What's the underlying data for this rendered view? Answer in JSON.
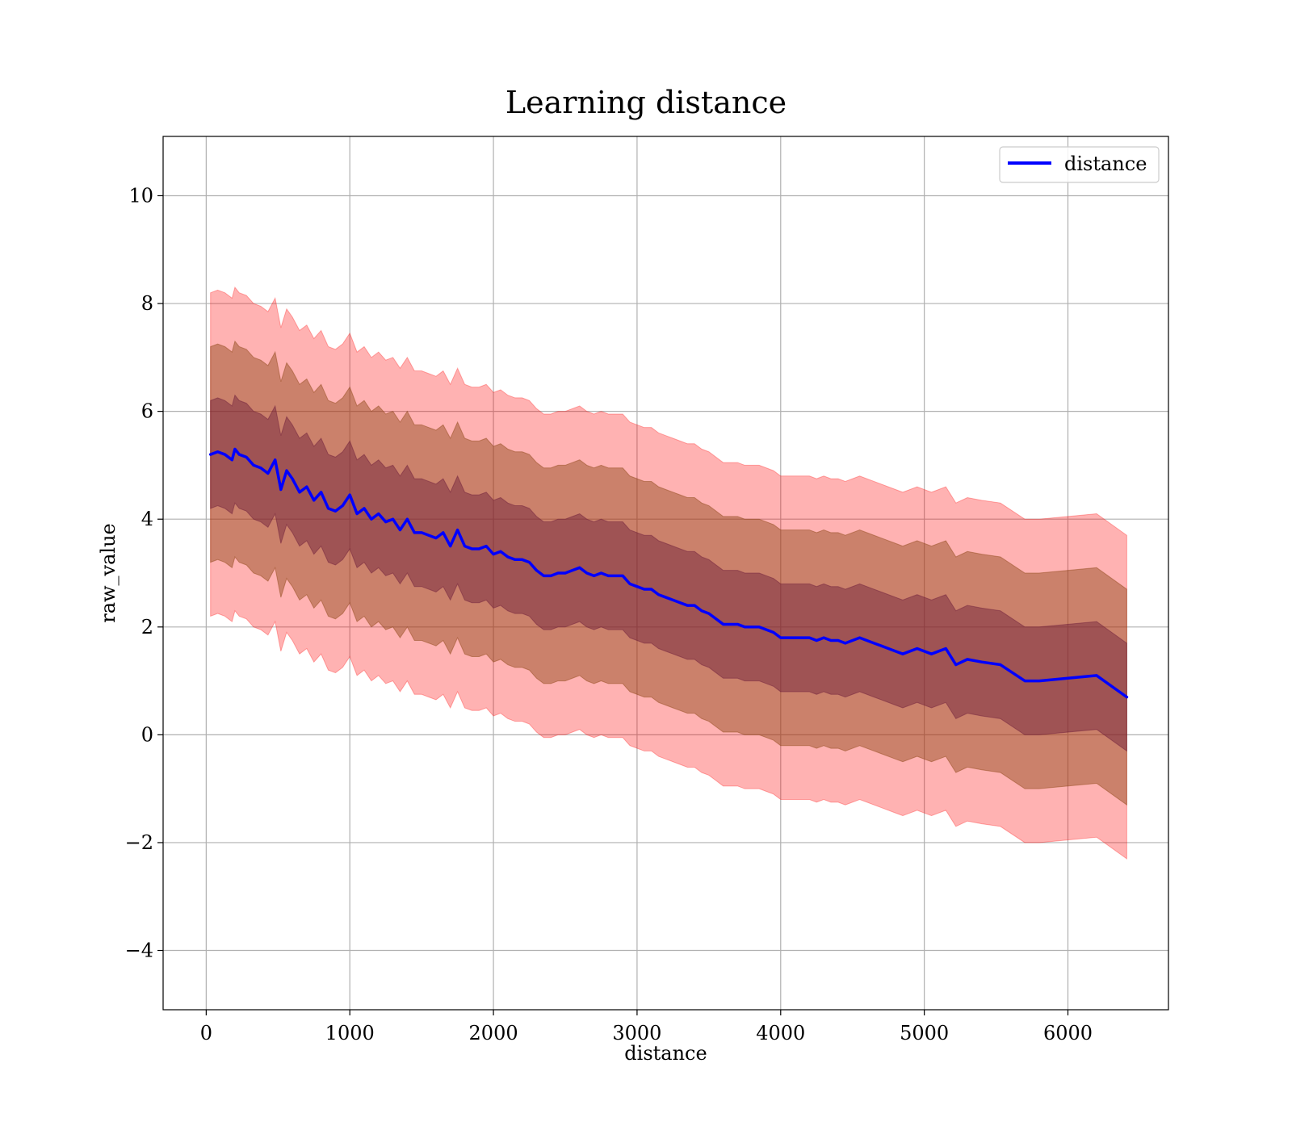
{
  "chart_data": {
    "type": "line",
    "title": "Learning distance",
    "xlabel": "distance",
    "ylabel": "raw_value",
    "xlim": [
      -300,
      6700
    ],
    "ylim": [
      -5.1,
      11.1
    ],
    "x_ticks": [
      0,
      1000,
      2000,
      3000,
      4000,
      5000,
      6000
    ],
    "y_ticks": [
      -4,
      -2,
      0,
      2,
      4,
      6,
      8,
      10
    ],
    "x_tick_labels": [
      "0",
      "1000",
      "2000",
      "3000",
      "4000",
      "5000",
      "6000"
    ],
    "y_tick_labels": [
      "−4",
      "−2",
      "0",
      "2",
      "4",
      "6",
      "8",
      "10"
    ],
    "grid": true,
    "legend_position": "top-right",
    "series": [
      {
        "name": "distance",
        "color": "#0000ff",
        "x": [
          30,
          80,
          130,
          180,
          200,
          230,
          280,
          330,
          380,
          430,
          480,
          520,
          560,
          600,
          650,
          700,
          750,
          800,
          850,
          900,
          950,
          1000,
          1050,
          1100,
          1150,
          1200,
          1250,
          1300,
          1350,
          1400,
          1450,
          1500,
          1550,
          1600,
          1650,
          1700,
          1750,
          1800,
          1850,
          1900,
          1950,
          2000,
          2050,
          2100,
          2150,
          2200,
          2250,
          2300,
          2350,
          2400,
          2450,
          2500,
          2550,
          2600,
          2650,
          2700,
          2750,
          2800,
          2850,
          2900,
          2950,
          3000,
          3050,
          3100,
          3150,
          3200,
          3250,
          3300,
          3350,
          3400,
          3450,
          3500,
          3550,
          3600,
          3650,
          3700,
          3750,
          3800,
          3850,
          3900,
          3950,
          4000,
          4100,
          4200,
          4250,
          4300,
          4350,
          4400,
          4450,
          4550,
          4650,
          4700,
          4800,
          4850,
          4950,
          5050,
          5150,
          5220,
          5300,
          5400,
          5530,
          5700,
          5800,
          6200,
          6410
        ],
        "values": [
          5.2,
          5.25,
          5.2,
          5.1,
          5.3,
          5.2,
          5.15,
          5.0,
          4.95,
          4.85,
          5.1,
          4.55,
          4.9,
          4.75,
          4.5,
          4.6,
          4.35,
          4.5,
          4.2,
          4.15,
          4.25,
          4.45,
          4.1,
          4.2,
          4.0,
          4.1,
          3.95,
          4.0,
          3.8,
          4.0,
          3.75,
          3.75,
          3.7,
          3.65,
          3.75,
          3.5,
          3.8,
          3.5,
          3.45,
          3.45,
          3.5,
          3.35,
          3.4,
          3.3,
          3.25,
          3.25,
          3.2,
          3.05,
          2.95,
          2.95,
          3.0,
          3.0,
          3.05,
          3.1,
          3.0,
          2.95,
          3.0,
          2.95,
          2.95,
          2.95,
          2.8,
          2.75,
          2.7,
          2.7,
          2.6,
          2.55,
          2.5,
          2.45,
          2.4,
          2.4,
          2.3,
          2.25,
          2.15,
          2.05,
          2.05,
          2.05,
          2.0,
          2.0,
          2.0,
          1.95,
          1.9,
          1.8,
          1.8,
          1.8,
          1.75,
          1.8,
          1.75,
          1.75,
          1.7,
          1.8,
          1.7,
          1.65,
          1.55,
          1.5,
          1.6,
          1.5,
          1.6,
          1.3,
          1.4,
          1.35,
          1.3,
          1.0,
          1.0,
          1.1,
          0.7
        ],
        "linewidth": 3.5
      }
    ],
    "bands": [
      {
        "k": 3,
        "color": "#ff0000",
        "opacity": 0.3,
        "label": ""
      },
      {
        "k": 2,
        "color": "#8b4513",
        "opacity": 0.45,
        "label": ""
      },
      {
        "k": 1,
        "color": "#6a1b3a",
        "opacity": 0.45,
        "label": ""
      }
    ]
  },
  "legend": {
    "label": "distance"
  }
}
